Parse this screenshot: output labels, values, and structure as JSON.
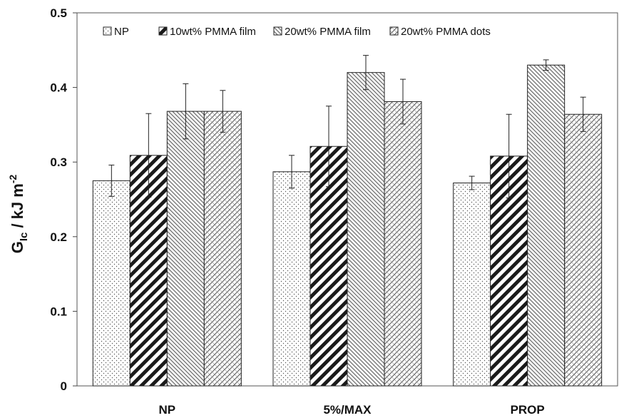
{
  "chart_data": {
    "type": "bar",
    "categories": [
      "NP",
      "5%/MAX",
      "PROP"
    ],
    "series": [
      {
        "name": "NP",
        "values": [
          0.275,
          0.287,
          0.272
        ],
        "errors": [
          0.021,
          0.022,
          0.009
        ],
        "pattern": "dots"
      },
      {
        "name": "10wt% PMMA film",
        "values": [
          0.309,
          0.321,
          0.308
        ],
        "errors": [
          0.056,
          0.054,
          0.056
        ],
        "pattern": "wide-diagonal"
      },
      {
        "name": "20wt% PMMA film",
        "values": [
          0.368,
          0.42,
          0.43
        ],
        "errors": [
          0.037,
          0.023,
          0.007
        ],
        "pattern": "fine-hatch"
      },
      {
        "name": "20wt% PMMA dots",
        "values": [
          0.368,
          0.381,
          0.364
        ],
        "errors": [
          0.028,
          0.03,
          0.023
        ],
        "pattern": "cross-hatch"
      }
    ],
    "ylabel_main": "G",
    "ylabel_sub": "Ic",
    "ylabel_rest": " / kJ m",
    "ylabel_sup": "-2",
    "ylim": [
      0,
      0.5
    ],
    "yticks": [
      "0",
      "0.1",
      "0.2",
      "0.3",
      "0.4",
      "0.5"
    ],
    "legend_position": "top",
    "grid": false
  }
}
